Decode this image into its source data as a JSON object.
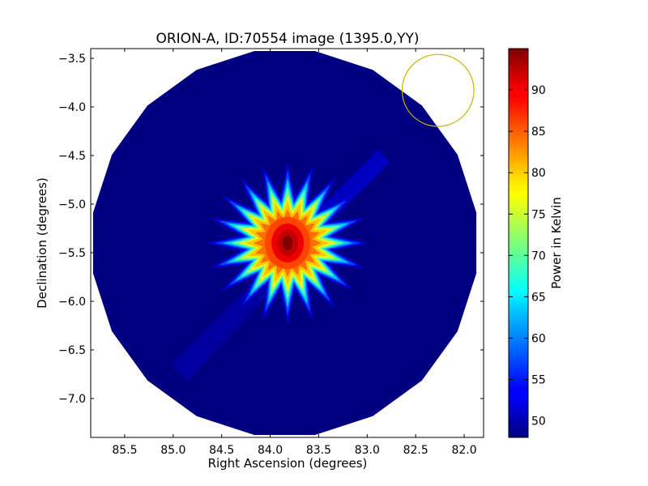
{
  "chart_data": {
    "type": "heatmap",
    "title": "ORION-A, ID:70554 image (1395.0,YY)",
    "xlabel": "Right Ascension (degrees)",
    "ylabel": "Declination (degrees)",
    "xlim": [
      85.85,
      81.8
    ],
    "ylim": [
      -7.4,
      -3.4
    ],
    "x_ticks": [
      85.5,
      85.0,
      84.5,
      84.0,
      83.5,
      83.0,
      82.5,
      82.0
    ],
    "x_tick_labels": [
      "85.5",
      "85.0",
      "84.5",
      "84.0",
      "83.5",
      "83.0",
      "82.5",
      "82.0"
    ],
    "y_ticks": [
      -3.5,
      -4.0,
      -4.5,
      -5.0,
      -5.5,
      -6.0,
      -6.5,
      -7.0
    ],
    "y_tick_labels": [
      "−3.5",
      "−4.0",
      "−4.5",
      "−5.0",
      "−5.5",
      "−6.0",
      "−6.5",
      "−7.0"
    ],
    "colorbar": {
      "label": "Power in Kelvin",
      "colormap": "jet",
      "range": [
        48,
        95
      ],
      "ticks": [
        50,
        55,
        60,
        65,
        70,
        75,
        80,
        85,
        90
      ],
      "tick_labels": [
        "50",
        "55",
        "60",
        "65",
        "70",
        "75",
        "80",
        "85",
        "90"
      ]
    },
    "image": {
      "map_center": {
        "ra": 83.85,
        "dec": -5.4
      },
      "map_radius_deg": 2.0,
      "background_level": 48,
      "source": {
        "ra": 83.82,
        "dec": -5.4,
        "peak": 95,
        "core_level": 90,
        "spokes": 20
      }
    },
    "beam_circle": {
      "ra": 82.27,
      "dec": -3.83,
      "radius_deg": 0.37,
      "color": "#c8b400"
    },
    "grid": false,
    "legend": "none"
  }
}
